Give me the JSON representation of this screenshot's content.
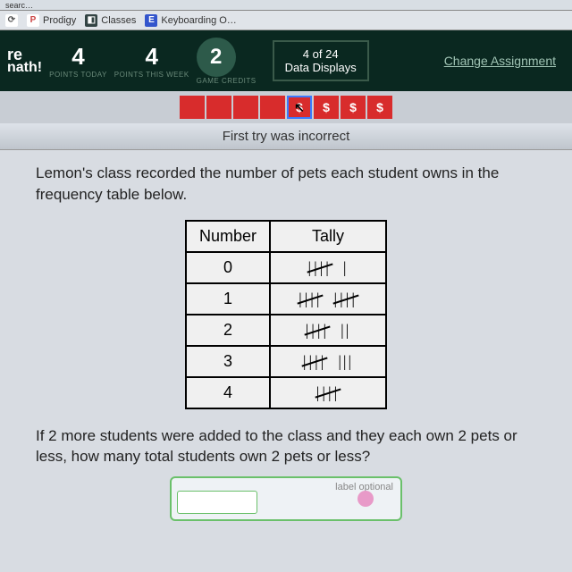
{
  "browser": {
    "search_placeholder": "searc…"
  },
  "bookmarks": [
    {
      "label": "",
      "icon": "⟳",
      "icon_bg": "#fff",
      "icon_color": "#555"
    },
    {
      "label": "Prodigy",
      "icon": "P",
      "icon_bg": "#fff",
      "icon_color": "#c44"
    },
    {
      "label": "Classes",
      "icon": "◧",
      "icon_bg": "#344",
      "icon_color": "#fff"
    },
    {
      "label": "Keyboarding O…",
      "icon": "E",
      "icon_bg": "#3355cc",
      "icon_color": "#fff"
    }
  ],
  "header": {
    "logo_top": "re",
    "logo_bottom": "nath!",
    "stats": [
      {
        "num": "4",
        "label": "POINTS\nTODAY"
      },
      {
        "num": "4",
        "label": "POINTS\nTHIS WEEK"
      }
    ],
    "credits": {
      "num": "2",
      "label": "GAME\nCREDITS"
    },
    "progress": {
      "top": "4 of 24",
      "bottom": "Data Displays"
    },
    "change_link": "Change Assignment"
  },
  "indicators": {
    "items": [
      "red",
      "red",
      "red",
      "red",
      "cursor",
      "dollar",
      "dollar",
      "dollar"
    ]
  },
  "feedback": "First try was incorrect",
  "question": "Lemon's class recorded the number of pets each student owns in the frequency table below.",
  "table": {
    "headers": [
      "Number",
      "Tally"
    ],
    "rows": [
      {
        "num": "0",
        "tally_groups": [
          5,
          1
        ]
      },
      {
        "num": "1",
        "tally_groups": [
          5,
          5
        ]
      },
      {
        "num": "2",
        "tally_groups": [
          5,
          2
        ]
      },
      {
        "num": "3",
        "tally_groups": [
          5,
          3
        ]
      },
      {
        "num": "4",
        "tally_groups": [
          5
        ]
      }
    ]
  },
  "followup": "If 2 more students were added to the class and they each own 2 pets or less, how many total students own 2 pets or less?",
  "answer": {
    "label_optional": "label optional"
  },
  "colors": {
    "header_bg": "#0a2820",
    "indicator_red": "#d82c2c",
    "answer_border": "#6ac06a"
  }
}
